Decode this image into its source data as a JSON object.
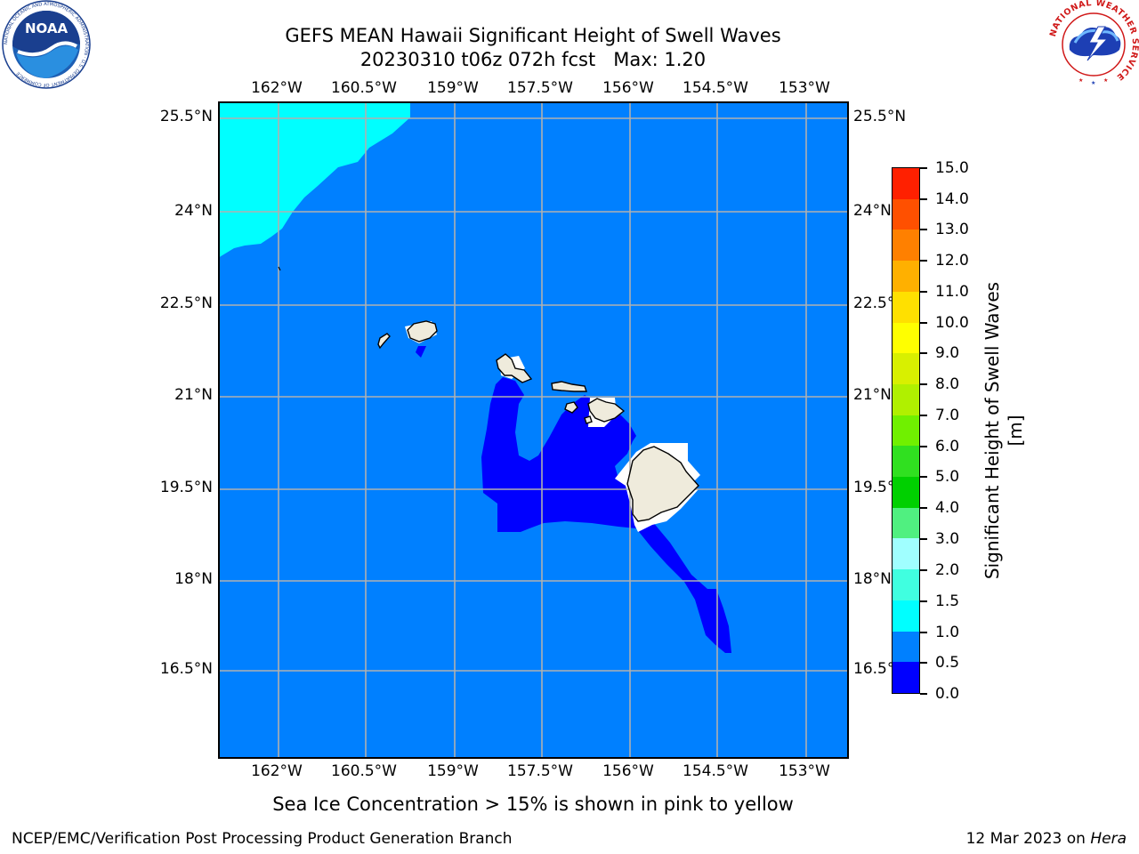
{
  "title": {
    "line1": "GEFS MEAN Hawaii Significant Height of Swell Waves",
    "line2": "20230310 t06z 072h fcst   Max: 1.20"
  },
  "map": {
    "lon_labels": [
      "162°W",
      "160.5°W",
      "159°W",
      "157.5°W",
      "156°W",
      "154.5°W",
      "153°W"
    ],
    "lat_labels": [
      "25.5°N",
      "24°N",
      "22.5°N",
      "21°N",
      "19.5°N",
      "18°N",
      "16.5°N"
    ],
    "lon_range": [
      -163,
      -152.75
    ],
    "lat_range": [
      15.25,
      25.75
    ],
    "ocean_color": "#0080ff",
    "land_color": "#efebdc",
    "grid": true
  },
  "colorbar": {
    "title": "Significant Height of Swell Waves [m]",
    "tick_labels": [
      "0.0",
      "0.5",
      "1.0",
      "1.5",
      "2.0",
      "3.0",
      "4.0",
      "5.0",
      "6.0",
      "7.0",
      "8.0",
      "9.0",
      "10.0",
      "11.0",
      "12.0",
      "13.0",
      "14.0",
      "15.0"
    ],
    "colors": [
      "#0000ff",
      "#0080ff",
      "#00ffff",
      "#40ffe0",
      "#a0ffff",
      "#50f080",
      "#00d000",
      "#30e020",
      "#70f000",
      "#b0f000",
      "#d8f000",
      "#ffff00",
      "#ffe000",
      "#ffb000",
      "#ff8000",
      "#ff5000",
      "#ff2000"
    ]
  },
  "footer": {
    "note": "Sea Ice Concentration > 15% is shown in pink to yellow",
    "left": "NCEP/EMC/Verification Post Processing Product Generation Branch",
    "right_prefix": "12 Mar 2023 on",
    "right_host": "Hera"
  },
  "logos": {
    "noaa_text": "NOAA",
    "noaa_ring_text": "NATIONAL OCEANIC AND ATMOSPHERIC ADMINISTRATION · U.S. DEPARTMENT OF COMMERCE",
    "nws_ring_text": "NATIONAL WEATHER SERVICE"
  }
}
